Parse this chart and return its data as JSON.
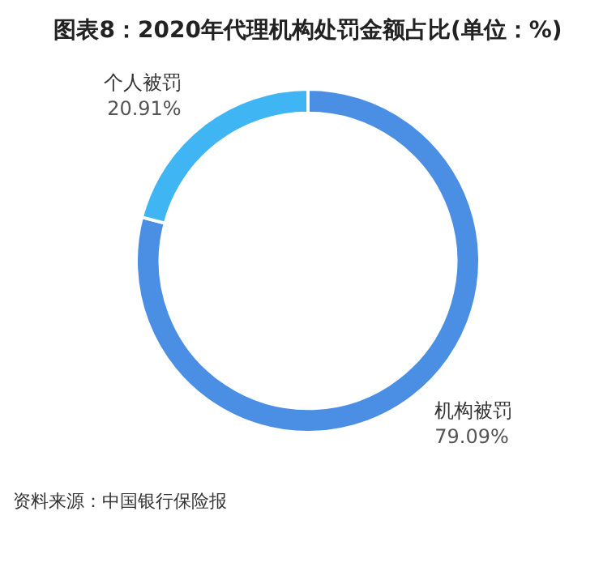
{
  "chart_data": {
    "type": "donut",
    "title": "图表8：2020年代理机构处罚金额占比(单位：%)",
    "categories": [
      "机构被罚",
      "个人被罚"
    ],
    "values": [
      79.09,
      20.91
    ],
    "colors": [
      "#4a8fe3",
      "#3fb5f3"
    ],
    "value_labels": [
      "79.09%",
      "20.91%"
    ],
    "legend": false,
    "annotations": [
      "资料来源：中国银行保险报"
    ]
  }
}
